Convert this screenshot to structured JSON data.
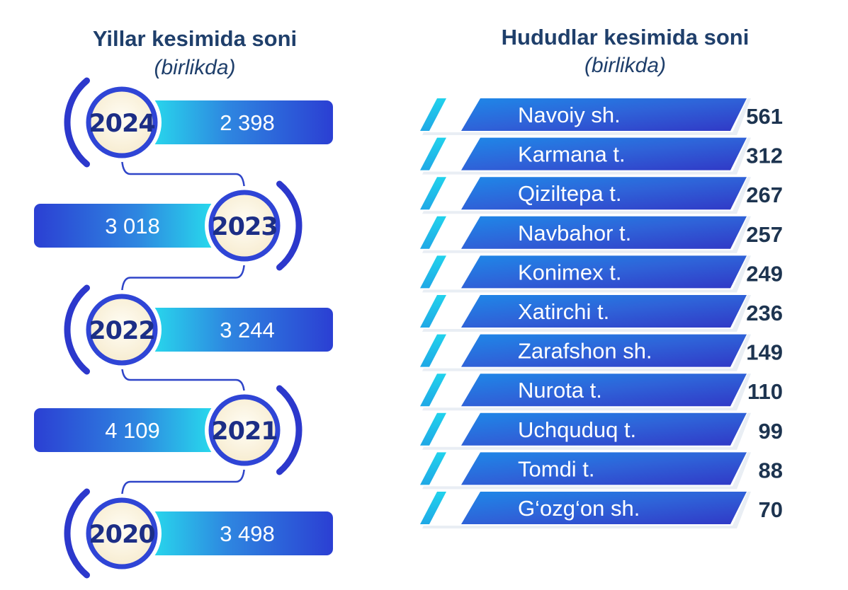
{
  "left_panel": {
    "title": "Yillar kesimida soni",
    "subtitle": "(birlikda)"
  },
  "right_panel": {
    "title": "Hududlar kesimida soni",
    "subtitle": "(birlikda)"
  },
  "colors": {
    "title": "#1f3f6b",
    "bar_dark": "#2c48d6",
    "bar_light": "#1fe0ee",
    "year_text": "#1c2e86",
    "ring": "#3b49d8",
    "circle_fill": "#fdf7e6",
    "value_text": "#1d3450"
  },
  "chart_data": [
    {
      "type": "bar",
      "title": "Yillar kesimida soni",
      "subtitle": "(birlikda)",
      "categories": [
        "2024",
        "2023",
        "2022",
        "2021",
        "2020"
      ],
      "values": [
        2398,
        3018,
        3244,
        4109,
        3498
      ],
      "value_labels": [
        "2 398",
        "3 018",
        "3 244",
        "4 109",
        "3 498"
      ]
    },
    {
      "type": "bar",
      "title": "Hududlar kesimida soni",
      "subtitle": "(birlikda)",
      "categories": [
        "Navoiy sh.",
        "Karmana t.",
        "Qiziltepa t.",
        "Navbahor t.",
        "Konimex t.",
        "Xatirchi t.",
        "Zarafshon sh.",
        "Nurota t.",
        "Uchquduq t.",
        "Tomdi t.",
        "G‘ozg‘on sh."
      ],
      "values": [
        561,
        312,
        267,
        257,
        249,
        236,
        149,
        110,
        99,
        88,
        70
      ]
    }
  ]
}
